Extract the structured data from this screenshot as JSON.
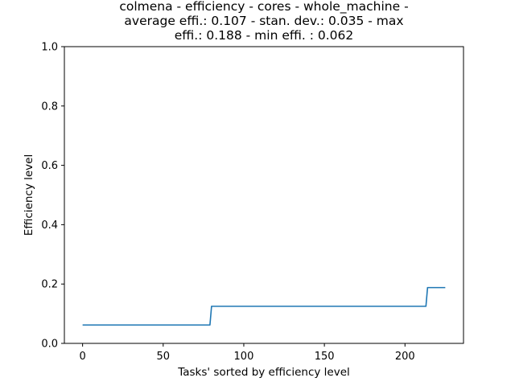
{
  "chart_data": {
    "type": "line",
    "title_lines": [
      "colmena - efficiency - cores - whole_machine -",
      "average effi.: 0.107 - stan. dev.: 0.035 - max",
      "effi.: 0.188 - min effi. : 0.062"
    ],
    "xlabel": "Tasks' sorted by efficiency level",
    "ylabel": "Efficiency level",
    "xlim": [
      -11.3,
      236.3
    ],
    "ylim": [
      0.0,
      1.0
    ],
    "xticks": [
      0,
      50,
      100,
      150,
      200
    ],
    "xtick_labels": [
      "0",
      "50",
      "100",
      "150",
      "200"
    ],
    "yticks": [
      0.0,
      0.2,
      0.4,
      0.6,
      0.8,
      1.0
    ],
    "ytick_labels": [
      "0.0",
      "0.2",
      "0.4",
      "0.6",
      "0.8",
      "1.0"
    ],
    "grid": false,
    "series": [
      {
        "color": "#1f77b4",
        "x": [
          0,
          79,
          80,
          213,
          214,
          225
        ],
        "y": [
          0.062,
          0.062,
          0.125,
          0.125,
          0.188,
          0.188
        ]
      }
    ]
  }
}
